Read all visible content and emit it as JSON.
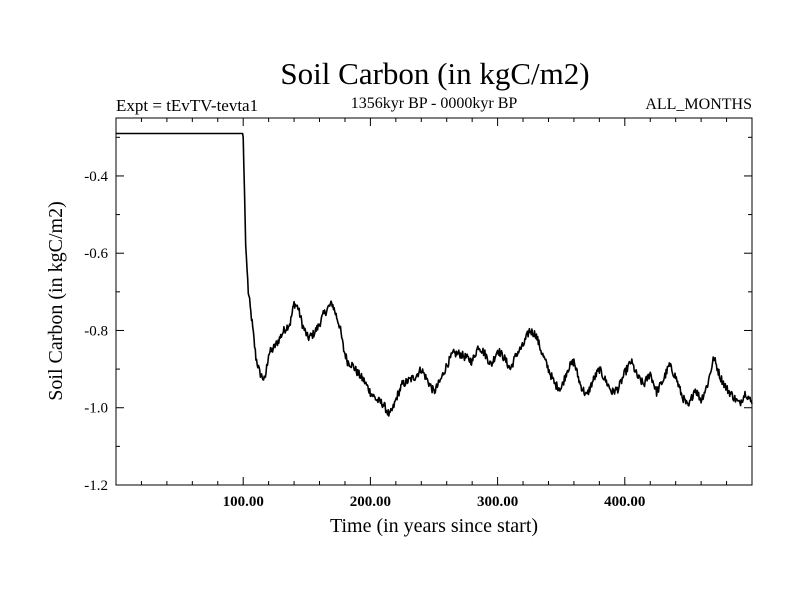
{
  "chart_data": {
    "type": "line",
    "title": "Soil Carbon (in kgC/m2)",
    "subtitle_left": "Expt = tEvTV-tevta1",
    "subtitle_center": "1356kyr BP - 0000kyr BP",
    "subtitle_right": "ALL_MONTHS",
    "xlabel": "Time (in years since start)",
    "ylabel": "Soil Carbon (in kgC/m2)",
    "xlim": [
      0,
      500
    ],
    "ylim": [
      -1.2,
      -0.25
    ],
    "x_ticks": [
      {
        "value": 100,
        "label": "100.00"
      },
      {
        "value": 200,
        "label": "200.00"
      },
      {
        "value": 300,
        "label": "300.00"
      },
      {
        "value": 400,
        "label": "400.00"
      }
    ],
    "y_ticks": [
      {
        "value": -0.4,
        "label": "-0.4"
      },
      {
        "value": -0.6,
        "label": "-0.6"
      },
      {
        "value": -0.8,
        "label": "-0.8"
      },
      {
        "value": -1.0,
        "label": "-1.0"
      },
      {
        "value": -1.2,
        "label": "-1.2"
      }
    ],
    "series": [
      {
        "name": "Soil Carbon",
        "color": "#000000",
        "x": [
          0,
          99.5,
          100,
          101,
          102,
          104,
          107,
          110,
          113,
          117,
          120,
          123,
          127,
          132,
          137,
          140,
          143,
          147,
          151,
          155,
          159,
          163,
          167,
          170,
          173,
          176,
          179,
          182,
          186,
          190,
          195,
          200,
          205,
          210,
          215,
          218,
          221,
          225,
          230,
          235,
          240,
          245,
          250,
          255,
          260,
          265,
          270,
          275,
          280,
          285,
          290,
          295,
          300,
          305,
          310,
          315,
          320,
          325,
          330,
          335,
          340,
          345,
          350,
          355,
          360,
          365,
          370,
          375,
          380,
          385,
          390,
          395,
          400,
          405,
          410,
          415,
          420,
          425,
          430,
          435,
          440,
          445,
          450,
          455,
          460,
          465,
          470,
          475,
          480,
          485,
          490,
          495,
          500
        ],
        "y": [
          -0.29,
          -0.29,
          -0.3,
          -0.44,
          -0.58,
          -0.7,
          -0.78,
          -0.87,
          -0.91,
          -0.93,
          -0.86,
          -0.85,
          -0.83,
          -0.8,
          -0.78,
          -0.73,
          -0.74,
          -0.79,
          -0.82,
          -0.81,
          -0.79,
          -0.76,
          -0.74,
          -0.73,
          -0.76,
          -0.79,
          -0.85,
          -0.88,
          -0.89,
          -0.91,
          -0.93,
          -0.96,
          -0.98,
          -0.99,
          -1.02,
          -1.0,
          -0.97,
          -0.94,
          -0.93,
          -0.92,
          -0.9,
          -0.93,
          -0.96,
          -0.93,
          -0.89,
          -0.86,
          -0.86,
          -0.87,
          -0.88,
          -0.84,
          -0.86,
          -0.89,
          -0.85,
          -0.87,
          -0.9,
          -0.86,
          -0.84,
          -0.8,
          -0.81,
          -0.86,
          -0.9,
          -0.94,
          -0.95,
          -0.9,
          -0.88,
          -0.94,
          -0.97,
          -0.93,
          -0.9,
          -0.93,
          -0.96,
          -0.95,
          -0.91,
          -0.88,
          -0.92,
          -0.94,
          -0.91,
          -0.96,
          -0.93,
          -0.89,
          -0.92,
          -0.97,
          -1.0,
          -0.95,
          -0.98,
          -0.94,
          -0.87,
          -0.92,
          -0.95,
          -0.97,
          -0.99,
          -0.96,
          -0.99
        ]
      }
    ]
  }
}
